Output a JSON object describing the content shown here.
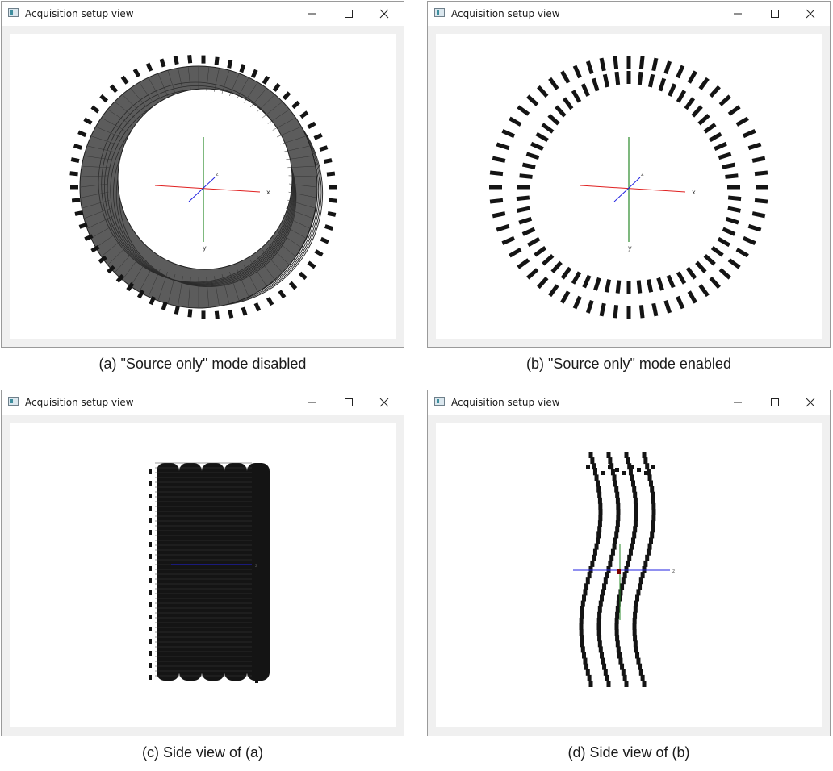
{
  "windows": [
    {
      "id": "a",
      "title": "Acquisition setup view",
      "caption": "(a) \"Source only\" mode disabled"
    },
    {
      "id": "b",
      "title": "Acquisition setup view",
      "caption": "(b) \"Source only\" mode enabled"
    },
    {
      "id": "c",
      "title": "Acquisition setup view",
      "caption": "(c) Side view of (a)"
    },
    {
      "id": "d",
      "title": "Acquisition setup view",
      "caption": "(d) Side view of (b)"
    }
  ],
  "axes": {
    "x_label": "x",
    "y_label": "y",
    "z_label": "z"
  },
  "colors": {
    "x_axis": "#e02020",
    "y_axis": "#2a8a2a",
    "z_axis": "#2020e0",
    "detector": "#5c5c5c",
    "source": "#141414"
  },
  "icons": {
    "minimize": "minimize-icon",
    "maximize": "maximize-icon",
    "close": "close-icon",
    "app": "app-icon"
  }
}
